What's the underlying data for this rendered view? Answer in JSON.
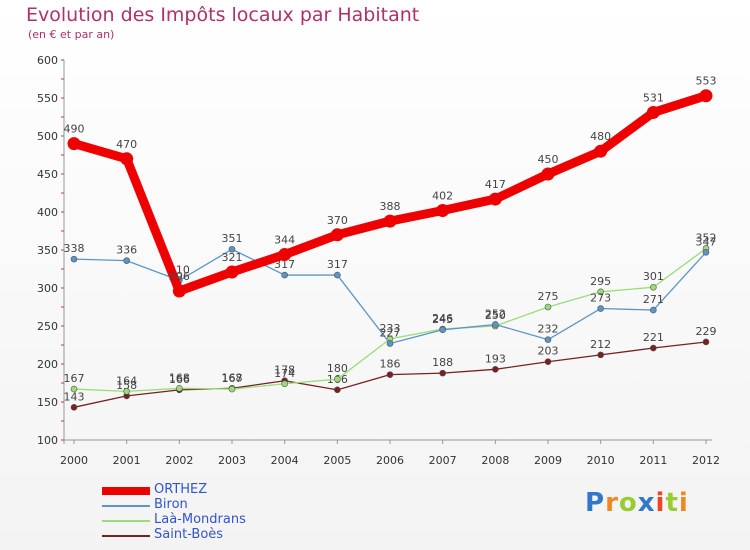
{
  "chart_data": {
    "type": "line",
    "title": "Evolution des Impôts locaux par Habitant",
    "subtitle": "(en € et par an)",
    "x": [
      2000,
      2001,
      2002,
      2003,
      2004,
      2005,
      2006,
      2007,
      2008,
      2009,
      2010,
      2011,
      2012
    ],
    "ylim": [
      100,
      600
    ],
    "yticks": [
      100,
      150,
      200,
      250,
      300,
      350,
      400,
      450,
      500,
      550,
      600
    ],
    "grid": false,
    "legend_position": "bottom-left",
    "series": [
      {
        "name": "ORTHEZ",
        "color": "#ee0000",
        "values": [
          490,
          470,
          296,
          321,
          344,
          370,
          388,
          402,
          417,
          450,
          480,
          531,
          553
        ]
      },
      {
        "name": "Biron",
        "color": "#5b95c7",
        "values": [
          338,
          336,
          310,
          351,
          317,
          317,
          227,
          245,
          252,
          232,
          273,
          271,
          347
        ]
      },
      {
        "name": "Laà-Mondrans",
        "color": "#99dd77",
        "values": [
          167,
          164,
          168,
          167,
          174,
          180,
          233,
          246,
          250,
          275,
          295,
          301,
          352
        ]
      },
      {
        "name": "Saint-Boès",
        "color": "#772222",
        "values": [
          143,
          158,
          166,
          168,
          178,
          166,
          186,
          188,
          193,
          203,
          212,
          221,
          229
        ]
      }
    ]
  },
  "logo": {
    "letters": [
      "P",
      "r",
      "o",
      "x",
      "i",
      "t",
      "i"
    ],
    "colors": [
      "#3377cc",
      "#ee8822",
      "#99cc33",
      "#3377cc",
      "#ee4422",
      "#99cc33",
      "#ee8822"
    ]
  }
}
